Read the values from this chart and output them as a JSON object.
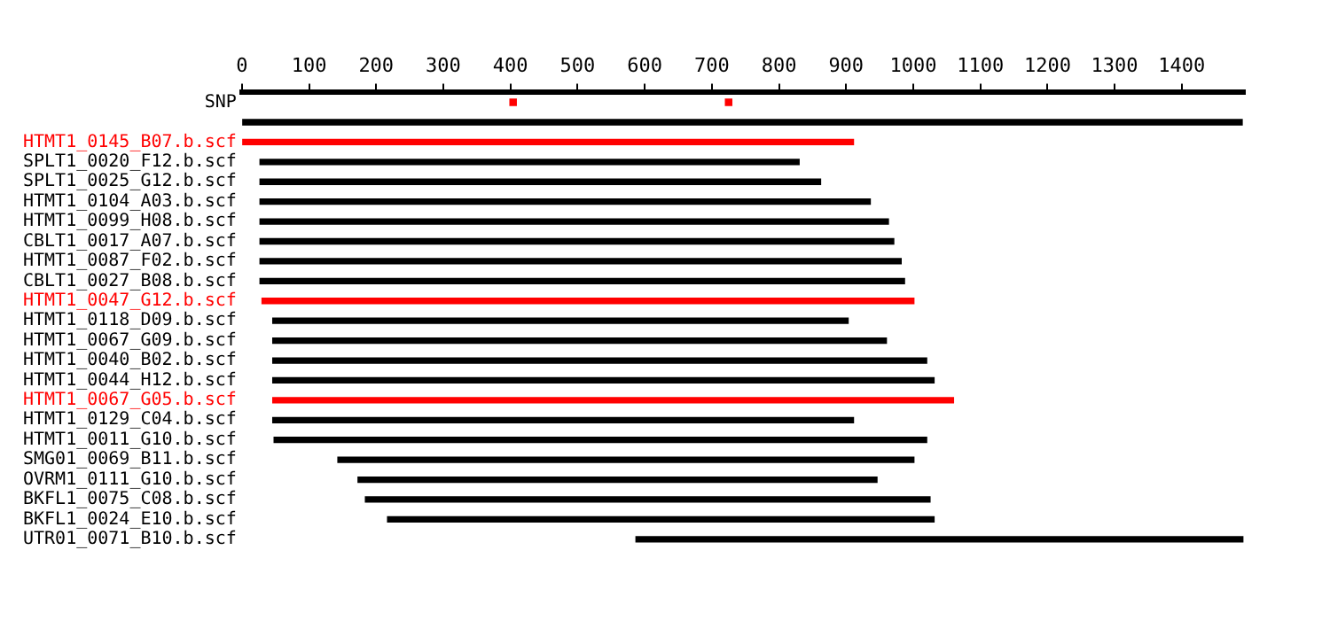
{
  "chart_data": {
    "type": "bar",
    "orientation": "horizontal",
    "categories": [
      "SNP",
      null,
      "HTMT1_0145_B07.b.scf",
      "SPLT1_0020_F12.b.scf",
      "SPLT1_0025_G12.b.scf",
      "HTMT1_0104_A03.b.scf",
      "HTMT1_0099_H08.b.scf",
      "CBLT1_0017_A07.b.scf",
      "HTMT1_0087_F02.b.scf",
      "CBLT1_0027_B08.b.scf",
      "HTMT1_0047_G12.b.scf",
      "HTMT1_0118_D09.b.scf",
      "HTMT1_0067_G09.b.scf",
      "HTMT1_0040_B02.b.scf",
      "HTMT1_0044_H12.b.scf",
      "HTMT1_0067_G05.b.scf",
      "HTMT1_0129_C04.b.scf",
      "HTMT1_0011_G10.b.scf",
      "SMG01_0069_B11.b.scf",
      "OVRM1_0111_G10.b.scf",
      "BKFL1_0075_C08.b.scf",
      "BKFL1_0024_E10.b.scf",
      "UTR01_0071_B10.b.scf"
    ],
    "series": [
      {
        "type": "bar",
        "base": [
          null,
          0,
          0,
          27,
          27,
          27,
          27,
          27,
          27,
          27,
          30,
          46,
          46,
          46,
          46,
          46,
          46,
          48,
          143,
          173,
          184,
          217,
          587
        ],
        "values": [
          null,
          1490,
          911,
          803,
          835,
          909,
          936,
          944,
          955,
          960,
          971,
          857,
          914,
          974,
          985,
          1014,
          865,
          972,
          858,
          773,
          841,
          814,
          904
        ],
        "colors": [
          "#000000",
          "#000000",
          "#ff0000",
          "#000000",
          "#000000",
          "#000000",
          "#000000",
          "#000000",
          "#000000",
          "#000000",
          "#ff0000",
          "#000000",
          "#000000",
          "#000000",
          "#000000",
          "#ff0000",
          "#000000",
          "#000000",
          "#000000",
          "#000000",
          "#000000",
          "#000000",
          "#000000"
        ]
      },
      {
        "type": "scatter",
        "color": "#ff0000",
        "values": [
          404,
          null,
          null,
          null,
          null,
          null,
          null,
          null,
          null,
          null,
          null,
          null,
          null,
          null,
          null,
          null,
          null,
          null,
          null,
          null,
          null,
          null,
          null
        ]
      },
      {
        "type": "scatter",
        "color": "#ff0000",
        "values": [
          725,
          null,
          null,
          null,
          null,
          null,
          null,
          null,
          null,
          null,
          null,
          null,
          null,
          null,
          null,
          null,
          null,
          null,
          null,
          null,
          null,
          null,
          null
        ]
      }
    ],
    "marker": "square",
    "xlim": [
      0,
      1494
    ],
    "xticks": [
      0,
      100,
      200,
      300,
      400,
      500,
      600,
      700,
      800,
      900,
      1000,
      1100,
      1200,
      1300,
      1400
    ],
    "grid": false,
    "legend": false
  }
}
